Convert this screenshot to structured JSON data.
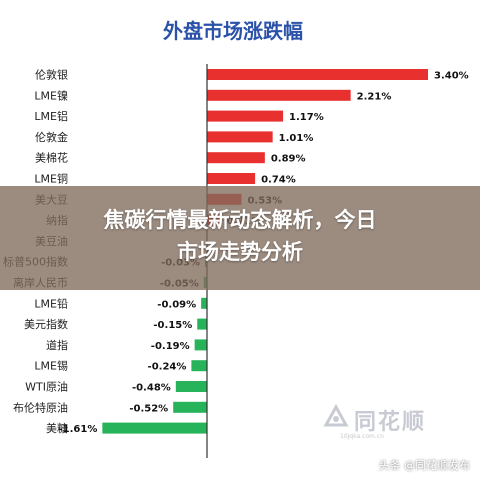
{
  "chart_data": {
    "type": "bar",
    "orientation": "horizontal",
    "title": "外盘市场涨跌幅",
    "categories": [
      "伦敦银",
      "LME镍",
      "LME铝",
      "伦敦金",
      "美棉花",
      "LME铜",
      "美大豆",
      "纳指",
      "美豆油",
      "标普500指数",
      "离岸人民币",
      "LME铅",
      "美元指数",
      "道指",
      "LME锡",
      "WTI原油",
      "布伦特原油",
      "美糖"
    ],
    "category_labels": [
      "伦敦银",
      "LME镍",
      "LME铝",
      "伦敦金",
      "美棉花",
      "LME铜",
      "美大豆",
      "纳指",
      "美豆油",
      "标普500指数",
      "离岸人民币",
      "LME铅",
      "美元指数",
      "道指",
      "LME锡",
      "WTI原油",
      "布伦特原油",
      "美糖"
    ],
    "values": [
      3.4,
      2.21,
      1.17,
      1.01,
      0.89,
      0.74,
      0.53,
      0.21,
      0,
      -0.03,
      -0.05,
      -0.09,
      -0.15,
      -0.19,
      -0.24,
      -0.48,
      -0.52,
      -1.61
    ],
    "value_labels": [
      "3.40%",
      "2.21%",
      "1.17%",
      "1.01%",
      "0.89%",
      "0.74%",
      "0.53%",
      "0.21%",
      "",
      "-0.03%",
      "-0.05%",
      "-0.09%",
      "-0.15%",
      "-0.19%",
      "-0.24%",
      "-0.48%",
      "-0.52%",
      "-1.61%"
    ],
    "xlim": [
      -1.7,
      3.9
    ],
    "colors": {
      "positive": "#e8312f",
      "negative": "#27b35a",
      "title": "#2a52a8",
      "axis": "#333333"
    }
  },
  "banner": {
    "headline_line1": "焦碳行情最新动态解析，今日",
    "headline_line2": "市场走势分析"
  },
  "watermark": {
    "brand": "同花顺",
    "site": "10jqka.com.cn"
  },
  "credit": "头条 @同花顺发布"
}
